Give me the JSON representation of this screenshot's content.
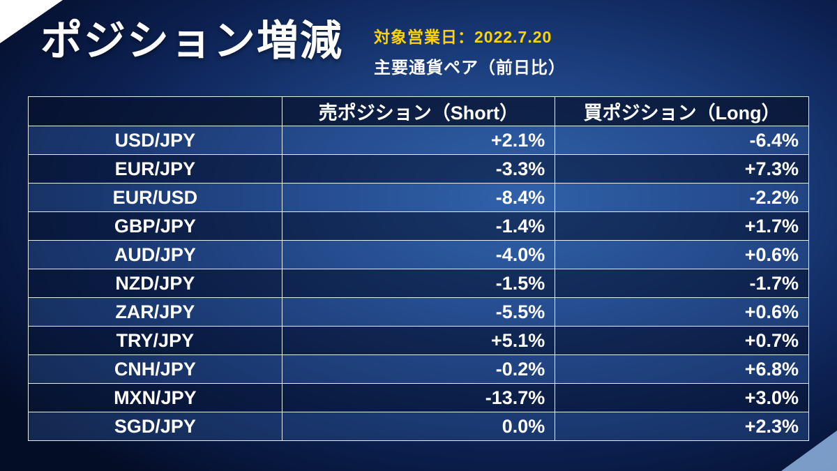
{
  "header": {
    "title": "ポジション増減",
    "date_label": "対象営業日：2022.7.20",
    "subtitle": "主要通貨ペア（前日比）"
  },
  "table": {
    "columns": [
      "",
      "売ポジション（Short）",
      "買ポジション（Long）"
    ],
    "rows": [
      {
        "pair": "USD/JPY",
        "short": "+2.1%",
        "long": "-6.4%"
      },
      {
        "pair": "EUR/JPY",
        "short": "-3.3%",
        "long": "+7.3%"
      },
      {
        "pair": "EUR/USD",
        "short": "-8.4%",
        "long": "-2.2%"
      },
      {
        "pair": "GBP/JPY",
        "short": "-1.4%",
        "long": "+1.7%"
      },
      {
        "pair": "AUD/JPY",
        "short": "-4.0%",
        "long": "+0.6%"
      },
      {
        "pair": "NZD/JPY",
        "short": "-1.5%",
        "long": "-1.7%"
      },
      {
        "pair": "ZAR/JPY",
        "short": "-5.5%",
        "long": "+0.6%"
      },
      {
        "pair": "TRY/JPY",
        "short": "+5.1%",
        "long": "+0.7%"
      },
      {
        "pair": "CNH/JPY",
        "short": "-0.2%",
        "long": "+6.8%"
      },
      {
        "pair": "MXN/JPY",
        "short": "-13.7%",
        "long": "+3.0%"
      },
      {
        "pair": "SGD/JPY",
        "short": "0.0%",
        "long": "+2.3%"
      }
    ]
  },
  "chart_data": {
    "type": "table",
    "title": "ポジション増減",
    "subtitle": "主要通貨ペア（前日比）",
    "date": "2022.7.20",
    "categories": [
      "USD/JPY",
      "EUR/JPY",
      "EUR/USD",
      "GBP/JPY",
      "AUD/JPY",
      "NZD/JPY",
      "ZAR/JPY",
      "TRY/JPY",
      "CNH/JPY",
      "MXN/JPY",
      "SGD/JPY"
    ],
    "series": [
      {
        "name": "売ポジション（Short）",
        "unit": "%",
        "values": [
          2.1,
          -3.3,
          -8.4,
          -1.4,
          -4.0,
          -1.5,
          -5.5,
          5.1,
          -0.2,
          -13.7,
          0.0
        ]
      },
      {
        "name": "買ポジション（Long）",
        "unit": "%",
        "values": [
          -6.4,
          7.3,
          -2.2,
          1.7,
          0.6,
          -1.7,
          0.6,
          0.7,
          6.8,
          3.0,
          2.3
        ]
      }
    ]
  },
  "colors": {
    "accent_yellow": "#ffd400",
    "background_center": "#2e62ad",
    "background_edge": "#040d26",
    "row_light": "rgba(52,96,165,0.34)",
    "row_dark": "rgba(9,22,54,0.58)",
    "border": "#e8eef6"
  }
}
